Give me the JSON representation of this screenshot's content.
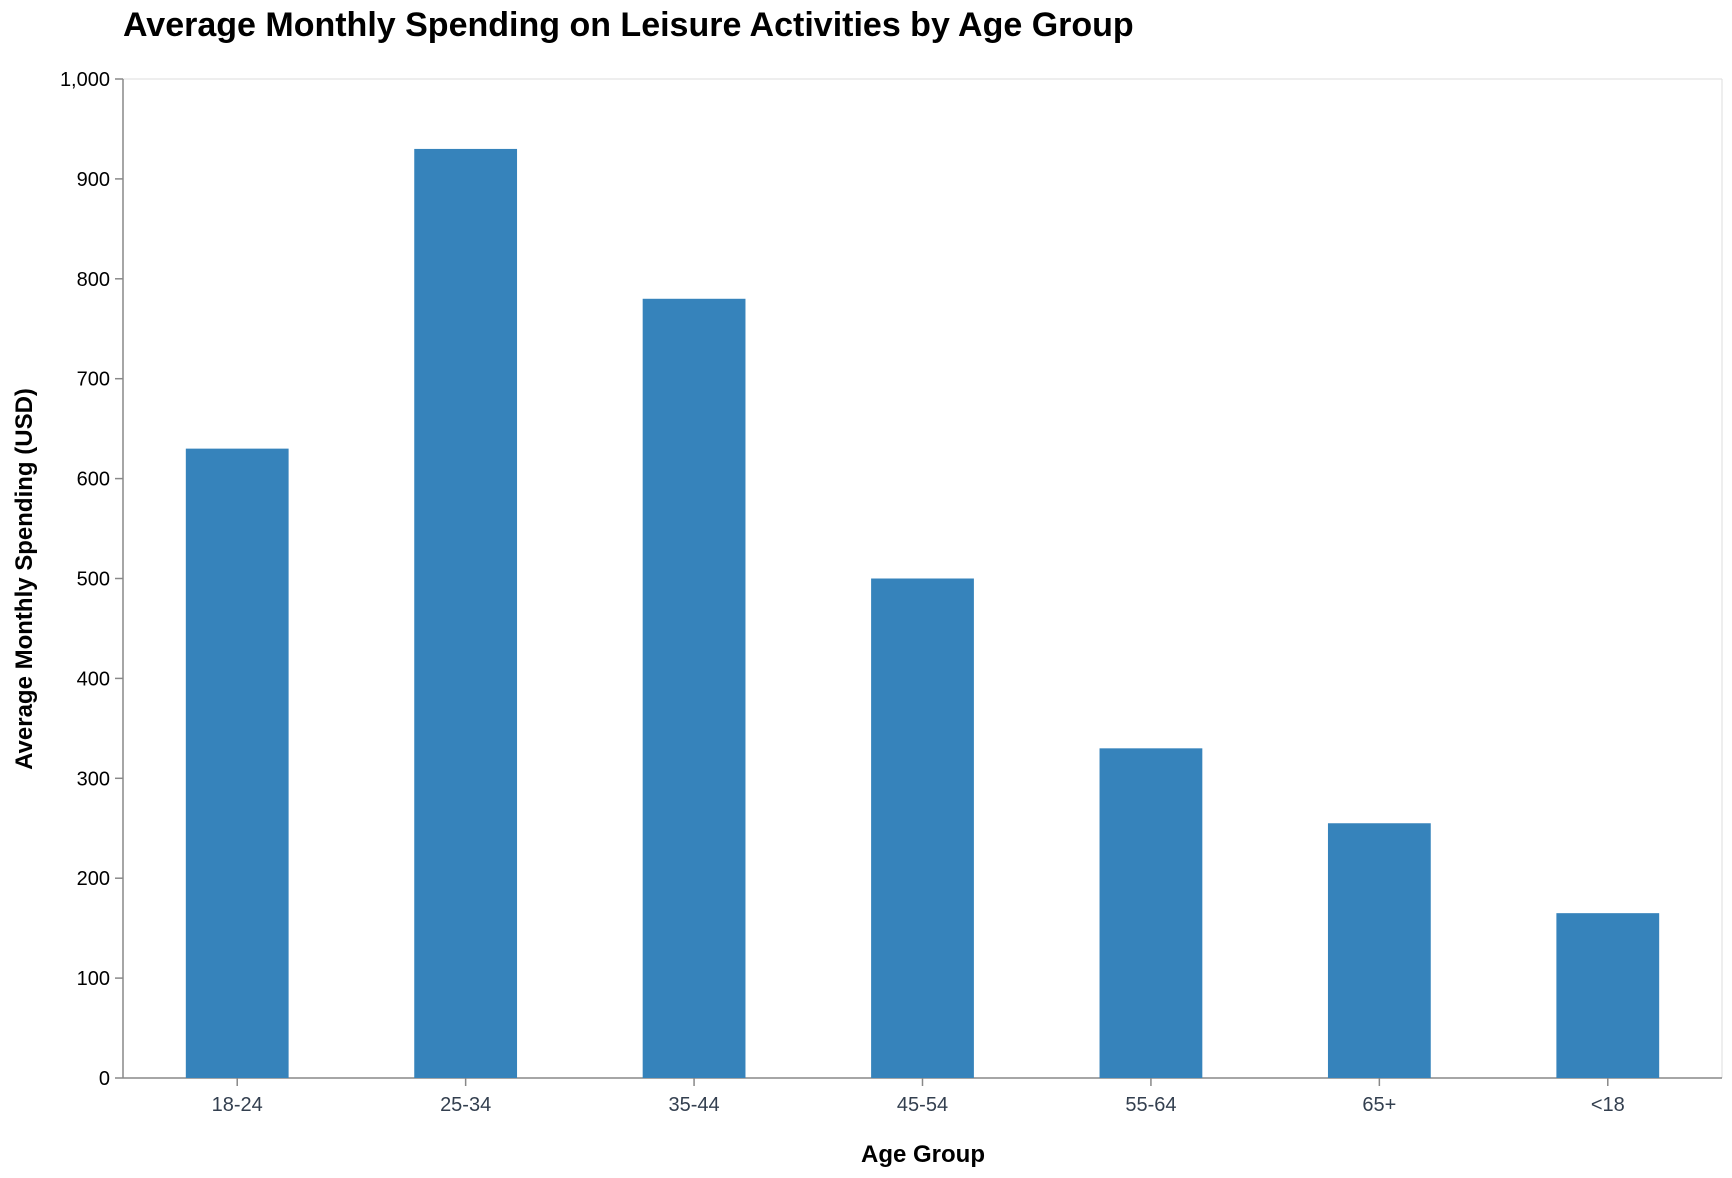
{
  "chart_data": {
    "type": "bar",
    "title": "Average Monthly Spending on Leisure Activities by Age Group",
    "xlabel": "Age Group",
    "ylabel": "Average Monthly Spending (USD)",
    "categories": [
      "18-24",
      "25-34",
      "35-44",
      "45-54",
      "55-64",
      "65+",
      "<18"
    ],
    "values": [
      630,
      930,
      780,
      500,
      330,
      255,
      165
    ],
    "ylim": [
      0,
      1000
    ],
    "yticks": [
      0,
      100,
      200,
      300,
      400,
      500,
      600,
      700,
      800,
      900,
      1000
    ],
    "ytick_labels": [
      "0",
      "100",
      "200",
      "300",
      "400",
      "500",
      "600",
      "700",
      "800",
      "900",
      "1,000"
    ],
    "grid": false,
    "bar_color": "#3683bb",
    "axis_color": "#888888"
  }
}
